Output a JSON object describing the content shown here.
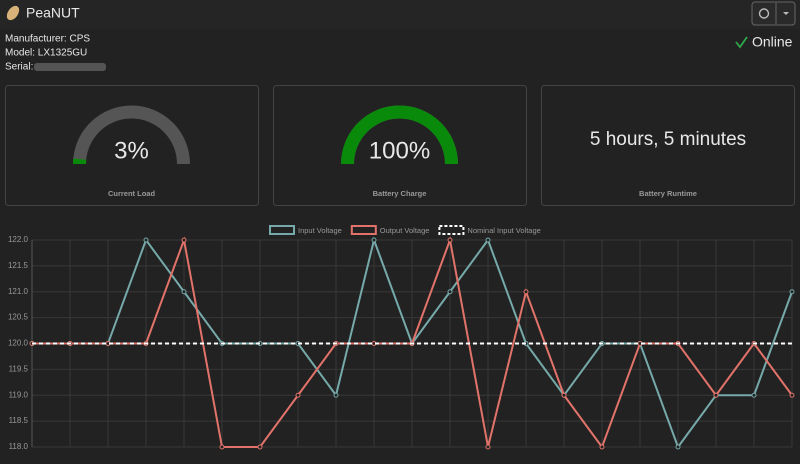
{
  "header": {
    "title": "PeaNUT"
  },
  "device": {
    "manufacturer": "Manufacturer: CPS",
    "model": "Model: LX1325GU",
    "serial": "Serial:"
  },
  "status": "Online",
  "gauges": [
    {
      "value": 3,
      "value_label": "3%",
      "label": "Current Load",
      "color": "#0a8a0a"
    },
    {
      "value": 100,
      "value_label": "100%",
      "label": "Battery Charge",
      "color": "#0a8a0a"
    }
  ],
  "runtime": {
    "value": "5 hours, 5 minutes",
    "label": "Battery Runtime"
  },
  "chart_data": {
    "type": "line",
    "categories": [
      null,
      null,
      null,
      null,
      null,
      null,
      null,
      null,
      null,
      null,
      null,
      null,
      null,
      null,
      null,
      null,
      null,
      null,
      null,
      null,
      null
    ],
    "series": [
      {
        "name": "Input Voltage",
        "color": "#76a9a9",
        "style": "solid",
        "values": [
          120,
          120,
          120,
          122,
          121,
          120,
          120,
          120,
          119,
          122,
          120,
          121,
          122,
          120,
          119,
          120,
          120,
          118,
          119,
          119,
          121
        ]
      },
      {
        "name": "Output Voltage",
        "color": "#e2736a",
        "style": "solid",
        "values": [
          120,
          120,
          120,
          120,
          122,
          118,
          118,
          119,
          120,
          120,
          120,
          122,
          118,
          121,
          119,
          118,
          120,
          120,
          119,
          120,
          119
        ]
      },
      {
        "name": "Nominal Input Voltage",
        "color": "#ffffff",
        "style": "dashed",
        "values": [
          120,
          120,
          120,
          120,
          120,
          120,
          120,
          120,
          120,
          120,
          120,
          120,
          120,
          120,
          120,
          120,
          120,
          120,
          120,
          120,
          120
        ]
      }
    ],
    "ylim": [
      118,
      122
    ],
    "yticks": [
      {
        "value": 118,
        "label": "118.0"
      },
      {
        "value": 118.5,
        "label": "118.5"
      },
      {
        "value": 119,
        "label": "119.0"
      },
      {
        "value": 119.5,
        "label": "119.5"
      },
      {
        "value": 120,
        "label": "120.0"
      },
      {
        "value": 120.5,
        "label": "120.5"
      },
      {
        "value": 121,
        "label": "121.0"
      },
      {
        "value": 121.5,
        "label": "121.5"
      },
      {
        "value": 122,
        "label": "122.0"
      }
    ],
    "grid": true,
    "legend": "top"
  }
}
